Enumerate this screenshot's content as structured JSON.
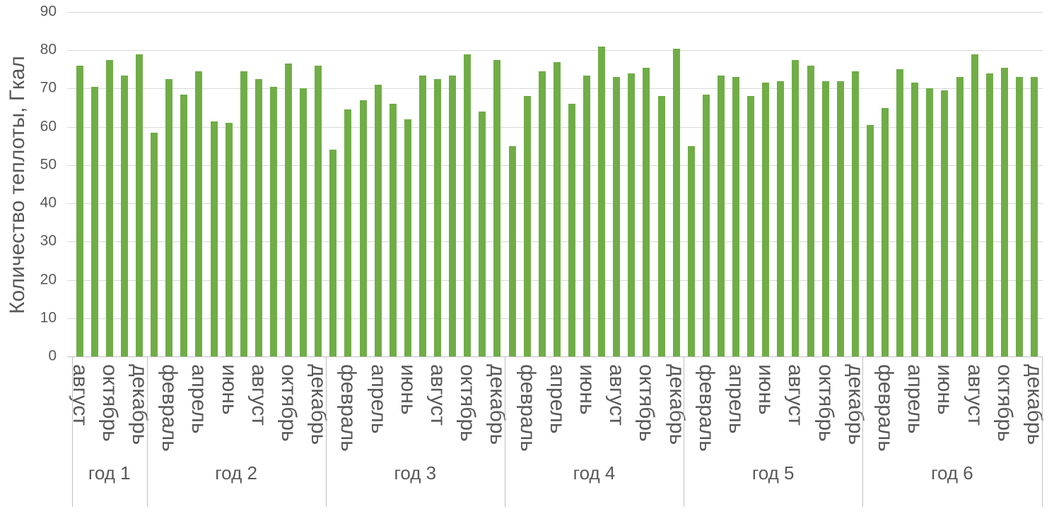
{
  "chart_data": {
    "type": "bar",
    "title": "",
    "ylabel": "Количество теплоты, Гкал",
    "xlabel": "",
    "ylim": [
      0,
      90
    ],
    "yticks": [
      0,
      10,
      20,
      30,
      40,
      50,
      60,
      70,
      80,
      90
    ],
    "grid": true,
    "legend": false,
    "bar_color": "#70AD47",
    "gridline_color": "#D9D9D9",
    "axis_line_color": "#BFBFBF",
    "text_color": "#595959",
    "groups": [
      {
        "label": "год 1",
        "values": [
          76,
          70.5,
          77.5,
          73.5,
          79
        ],
        "ticks": [
          {
            "slot": 0,
            "label": "август"
          },
          {
            "slot": 2,
            "label": "октябрь"
          },
          {
            "slot": 4,
            "label": "декабрь"
          }
        ]
      },
      {
        "label": "год 2",
        "values": [
          58.5,
          72.5,
          68.5,
          74.5,
          61.5,
          61,
          74.5,
          72.5,
          70.5,
          76.5,
          70,
          76
        ],
        "ticks": [
          {
            "slot": 1,
            "label": "февраль"
          },
          {
            "slot": 3,
            "label": "апрель"
          },
          {
            "slot": 5,
            "label": "июнь"
          },
          {
            "slot": 7,
            "label": "август"
          },
          {
            "slot": 9,
            "label": "октябрь"
          },
          {
            "slot": 11,
            "label": "декабрь"
          }
        ]
      },
      {
        "label": "год 3",
        "values": [
          54,
          64.5,
          67,
          71,
          66,
          62,
          73.5,
          72.5,
          73.5,
          79,
          64,
          77.5
        ],
        "ticks": [
          {
            "slot": 1,
            "label": "февраль"
          },
          {
            "slot": 3,
            "label": "апрель"
          },
          {
            "slot": 5,
            "label": "июнь"
          },
          {
            "slot": 7,
            "label": "август"
          },
          {
            "slot": 9,
            "label": "октябрь"
          },
          {
            "slot": 11,
            "label": "декабрь"
          }
        ]
      },
      {
        "label": "год 4",
        "values": [
          55,
          68,
          74.5,
          77,
          66,
          73.5,
          81,
          73,
          74,
          75.5,
          68,
          80.5
        ],
        "ticks": [
          {
            "slot": 1,
            "label": "февраль"
          },
          {
            "slot": 3,
            "label": "апрель"
          },
          {
            "slot": 5,
            "label": "июнь"
          },
          {
            "slot": 7,
            "label": "август"
          },
          {
            "slot": 9,
            "label": "октябрь"
          },
          {
            "slot": 11,
            "label": "декабрь"
          }
        ]
      },
      {
        "label": "год 5",
        "values": [
          55,
          68.5,
          73.5,
          73,
          68,
          71.5,
          72,
          77.5,
          76,
          72,
          72,
          74.5
        ],
        "ticks": [
          {
            "slot": 1,
            "label": "февраль"
          },
          {
            "slot": 3,
            "label": "апрель"
          },
          {
            "slot": 5,
            "label": "июнь"
          },
          {
            "slot": 7,
            "label": "август"
          },
          {
            "slot": 9,
            "label": "октябрь"
          },
          {
            "slot": 11,
            "label": "декабрь"
          }
        ]
      },
      {
        "label": "год 6",
        "values": [
          60.5,
          65,
          75,
          71.5,
          70,
          69.5,
          73,
          79,
          74,
          75.5,
          73,
          73
        ],
        "ticks": [
          {
            "slot": 1,
            "label": "февраль"
          },
          {
            "slot": 3,
            "label": "апрель"
          },
          {
            "slot": 5,
            "label": "июнь"
          },
          {
            "slot": 7,
            "label": "август"
          },
          {
            "slot": 9,
            "label": "октябрь"
          },
          {
            "slot": 11,
            "label": "декабрь"
          }
        ]
      }
    ]
  }
}
